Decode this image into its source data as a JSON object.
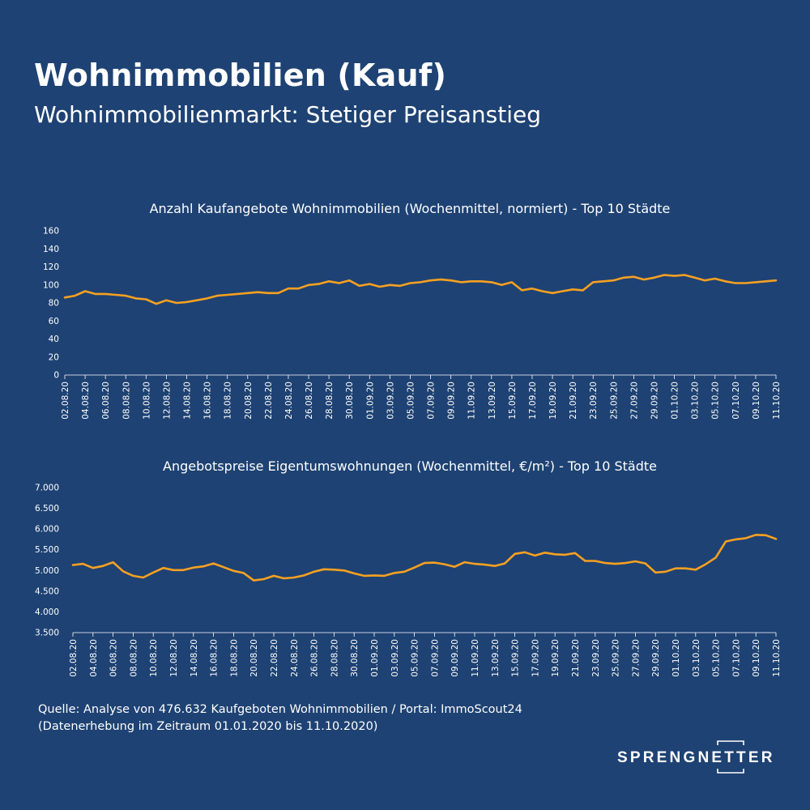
{
  "header": {
    "title": "Wohnimmobilien (Kauf)",
    "subtitle": "Wohnimmobilienmarkt: Stetiger Preisanstieg"
  },
  "colors": {
    "background": "#1e4273",
    "line": "#f7a021",
    "text": "#ffffff"
  },
  "footer": {
    "source_line1": "Quelle: Analyse von 476.632 Kaufgeboten Wohnimmobilien / Portal: ImmoScout24",
    "source_line2": "(Datenerhebung im Zeitraum 01.01.2020 bis 11.10.2020)"
  },
  "logo": {
    "text": "SPRENGNETTER"
  },
  "chart_data": [
    {
      "type": "line",
      "title": "Anzahl Kaufangebote Wohnimmobilien (Wochenmittel, normiert) - Top 10 Städte",
      "ylim": [
        0,
        160
      ],
      "yticks": [
        "0",
        "20",
        "40",
        "60",
        "80",
        "100",
        "120",
        "140",
        "160"
      ],
      "ytick_values": [
        0,
        20,
        40,
        60,
        80,
        100,
        120,
        140,
        160
      ],
      "xtick_labels": [
        "02.08.20",
        "04.08.20",
        "06.08.20",
        "08.08.20",
        "10.08.20",
        "12.08.20",
        "14.08.20",
        "16.08.20",
        "18.08.20",
        "20.08.20",
        "22.08.20",
        "24.08.20",
        "26.08.20",
        "28.08.20",
        "30.08.20",
        "01.09.20",
        "03.09.20",
        "05.09.20",
        "07.09.20",
        "09.09.20",
        "11.09.20",
        "13.09.20",
        "15.09.20",
        "17.09.20",
        "19.09.20",
        "21.09.20",
        "23.09.20",
        "25.09.20",
        "27.09.20",
        "29.09.20",
        "01.10.20",
        "03.10.20",
        "05.10.20",
        "07.10.20",
        "09.10.20",
        "11.10.20"
      ],
      "values": [
        86,
        88,
        93,
        90,
        90,
        89,
        88,
        85,
        84,
        79,
        83,
        80,
        81,
        83,
        85,
        88,
        89,
        90,
        91,
        92,
        91,
        91,
        96,
        96,
        100,
        101,
        104,
        102,
        105,
        99,
        101,
        98,
        100,
        99,
        102,
        103,
        105,
        106,
        105,
        103,
        104,
        104,
        103,
        100,
        103,
        94,
        96,
        93,
        91,
        93,
        95,
        94,
        103,
        104,
        105,
        108,
        109,
        106,
        108,
        111,
        110,
        111,
        108,
        105,
        107,
        104,
        102,
        102,
        103,
        104,
        105
      ],
      "grid": false
    },
    {
      "type": "line",
      "title": "Angebotspreise Eigentumswohnungen (Wochenmittel, €/m²) - Top 10 Städte",
      "ylim": [
        3500,
        7000
      ],
      "yticks": [
        "3.500",
        "4.000",
        "4.500",
        "5.000",
        "5.500",
        "6.000",
        "6.500",
        "7.000"
      ],
      "ytick_values": [
        3500,
        4000,
        4500,
        5000,
        5500,
        6000,
        6500,
        7000
      ],
      "xtick_labels": [
        "02.08.20",
        "04.08.20",
        "06.08.20",
        "08.08.20",
        "10.08.20",
        "12.08.20",
        "14.08.20",
        "16.08.20",
        "18.08.20",
        "20.08.20",
        "22.08.20",
        "24.08.20",
        "26.08.20",
        "28.08.20",
        "30.08.20",
        "01.09.20",
        "03.09.20",
        "05.09.20",
        "07.09.20",
        "09.09.20",
        "11.09.20",
        "13.09.20",
        "15.09.20",
        "17.09.20",
        "19.09.20",
        "21.09.20",
        "23.09.20",
        "25.09.20",
        "27.09.20",
        "29.09.20",
        "01.10.20",
        "03.10.20",
        "05.10.20",
        "07.10.20",
        "09.10.20",
        "11.10.20"
      ],
      "values": [
        5130,
        5160,
        5060,
        5110,
        5200,
        4980,
        4870,
        4830,
        4950,
        5060,
        5010,
        5010,
        5070,
        5100,
        5170,
        5080,
        4990,
        4940,
        4760,
        4790,
        4870,
        4810,
        4830,
        4880,
        4970,
        5030,
        5020,
        5000,
        4930,
        4870,
        4880,
        4870,
        4940,
        4970,
        5070,
        5180,
        5190,
        5150,
        5090,
        5200,
        5160,
        5140,
        5110,
        5170,
        5400,
        5440,
        5360,
        5430,
        5390,
        5380,
        5420,
        5230,
        5230,
        5180,
        5160,
        5180,
        5220,
        5170,
        4950,
        4970,
        5050,
        5050,
        5020,
        5150,
        5310,
        5700,
        5750,
        5780,
        5860,
        5850,
        5760
      ],
      "grid": false
    }
  ]
}
